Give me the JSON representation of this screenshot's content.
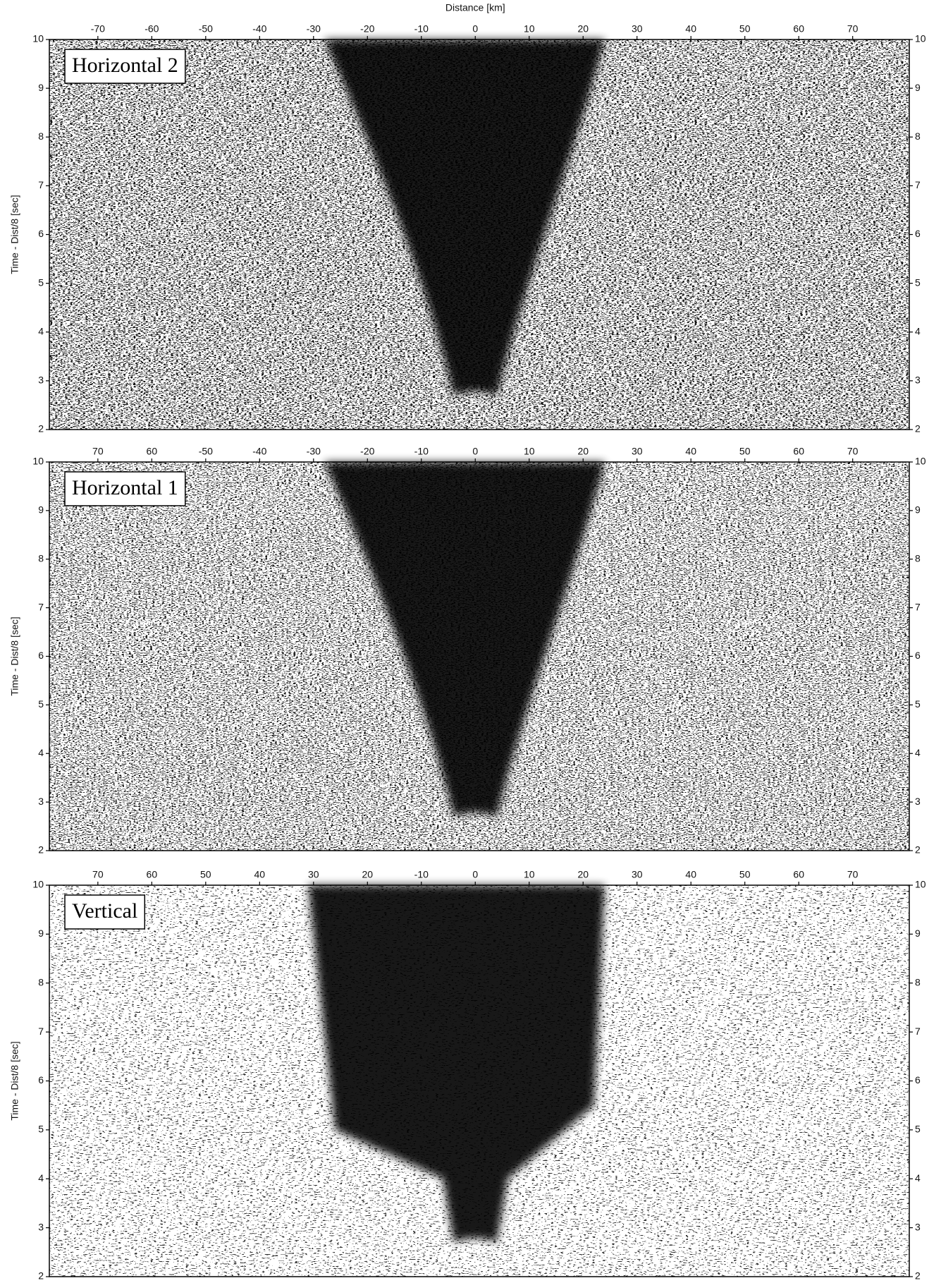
{
  "chart_data": [
    {
      "type": "seismic",
      "title": "Horizontal 2",
      "xlabel": "Distance [km]",
      "ylabel": "Time - Dist/8 [sec]",
      "xlim": [
        -79,
        80.5
      ],
      "ylim": [
        2,
        10
      ],
      "xticks": [
        -70,
        -60,
        -50,
        -40,
        -30,
        -20,
        -10,
        0,
        10,
        20,
        30,
        40,
        50,
        60,
        70
      ],
      "yticks": [
        2,
        3,
        4,
        5,
        6,
        7,
        8,
        9,
        10
      ]
    },
    {
      "type": "seismic",
      "title": "Horizontal 1",
      "ylabel": "Time - Dist/8 [sec]",
      "xlim": [
        -79,
        80.5
      ],
      "ylim": [
        2,
        10
      ],
      "xticks": [
        {
          "value": -70,
          "label": "70"
        },
        {
          "value": -60,
          "label": "60"
        },
        -50,
        -40,
        -30,
        -20,
        -10,
        0,
        10,
        20,
        30,
        40,
        50,
        60,
        70
      ],
      "yticks": [
        2,
        3,
        4,
        5,
        6,
        7,
        8,
        9,
        10
      ]
    },
    {
      "type": "seismic",
      "title": "Vertical",
      "ylabel": "Time - Dist/8 [sec]",
      "xlim": [
        -79,
        80.5
      ],
      "ylim": [
        2,
        10
      ],
      "xticks": [
        {
          "value": -70,
          "label": "70"
        },
        {
          "value": -60,
          "label": "60"
        },
        {
          "value": -50,
          "label": "50"
        },
        {
          "value": -40,
          "label": "40"
        },
        {
          "value": -30,
          "label": "30"
        },
        {
          "value": -20,
          "label": "20"
        },
        -10,
        0,
        10,
        20,
        30,
        40,
        50,
        60,
        70
      ],
      "yticks": [
        2,
        3,
        4,
        5,
        6,
        7,
        8,
        9,
        10
      ]
    }
  ]
}
